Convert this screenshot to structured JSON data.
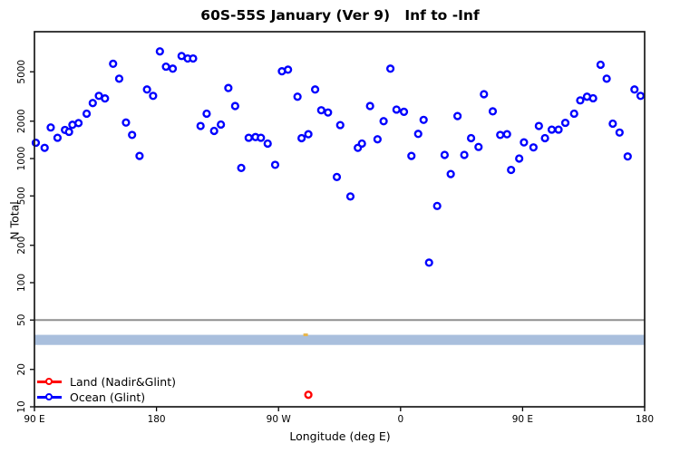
{
  "title": "60S-55S January (Ver 9)   Inf to -Inf",
  "chart_data": {
    "type": "scatter",
    "title": "60S-55S January (Ver 9)   Inf to -Inf",
    "xlabel": "Longitude (deg E)",
    "ylabel": "N Total",
    "x_axis": {
      "description": "longitude wrapping eastward, evenly spaced ticks",
      "range": [
        90,
        540
      ],
      "ticks": [
        {
          "value": 90,
          "label": "90 E"
        },
        {
          "value": 180,
          "label": "180"
        },
        {
          "value": 270,
          "label": "90 W"
        },
        {
          "value": 360,
          "label": "0"
        },
        {
          "value": 450,
          "label": "90 E"
        },
        {
          "value": 540,
          "label": "180"
        }
      ]
    },
    "y_axis": {
      "scale": "log",
      "min": 10,
      "max": 10000,
      "ticks": [
        10,
        20,
        50,
        100,
        200,
        500,
        1000,
        2000,
        5000
      ]
    },
    "grid": false,
    "reference_line": {
      "value": 50,
      "color": "#8f8f8f"
    },
    "reference_band": {
      "from": 31.5,
      "to": 38,
      "color": "#a9bfdd"
    },
    "small_mark": {
      "lon": 290,
      "value": 38,
      "color": "#e8b54a"
    },
    "legend": {
      "position": "bottom-left",
      "entries": [
        {
          "label": "Land (Nadir&Glint)",
          "color": "#ff0000"
        },
        {
          "label": "Ocean (Glint)",
          "color": "#0000ff"
        }
      ]
    },
    "series": [
      {
        "name": "Land (Nadir&Glint)",
        "color": "#ff0000",
        "marker": "open-circle",
        "points": [
          [
            292,
            12.5
          ]
        ]
      },
      {
        "name": "Ocean (Glint)",
        "color": "#0000ff",
        "marker": "open-circle",
        "points": [
          [
            91,
            1340
          ],
          [
            97.5,
            1220
          ],
          [
            102,
            1780
          ],
          [
            107,
            1470
          ],
          [
            112.5,
            1700
          ],
          [
            115.5,
            1640
          ],
          [
            118,
            1870
          ],
          [
            122.5,
            1930
          ],
          [
            128.5,
            2300
          ],
          [
            133,
            2800
          ],
          [
            137.5,
            3200
          ],
          [
            142,
            3050
          ],
          [
            148,
            5800
          ],
          [
            152.5,
            4400
          ],
          [
            157.5,
            1950
          ],
          [
            162,
            1550
          ],
          [
            167.5,
            1050
          ],
          [
            173,
            3600
          ],
          [
            177.5,
            3200
          ],
          [
            182.5,
            7300
          ],
          [
            187,
            5500
          ],
          [
            192,
            5300
          ],
          [
            198.5,
            6700
          ],
          [
            203,
            6400
          ],
          [
            207,
            6400
          ],
          [
            212.5,
            1830
          ],
          [
            217,
            2300
          ],
          [
            222.5,
            1670
          ],
          [
            227.5,
            1880
          ],
          [
            233,
            3700
          ],
          [
            238,
            2650
          ],
          [
            242.5,
            840
          ],
          [
            248,
            1470
          ],
          [
            253,
            1490
          ],
          [
            257,
            1470
          ],
          [
            262,
            1320
          ],
          [
            267.5,
            890
          ],
          [
            272.5,
            5050
          ],
          [
            277,
            5200
          ],
          [
            284,
            3150
          ],
          [
            287,
            1460
          ],
          [
            292,
            1570
          ],
          [
            297,
            3600
          ],
          [
            301.5,
            2450
          ],
          [
            306.5,
            2350
          ],
          [
            313,
            710
          ],
          [
            315.5,
            1860
          ],
          [
            323,
            495
          ],
          [
            328.5,
            1220
          ],
          [
            331.5,
            1320
          ],
          [
            337.5,
            2650
          ],
          [
            343,
            1430
          ],
          [
            347.5,
            2000
          ],
          [
            352.5,
            5300
          ],
          [
            357,
            2480
          ],
          [
            362.5,
            2380
          ],
          [
            368,
            1050
          ],
          [
            373,
            1580
          ],
          [
            377,
            2050
          ],
          [
            381,
            145
          ],
          [
            387,
            415
          ],
          [
            392.5,
            1070
          ],
          [
            397,
            750
          ],
          [
            402,
            2200
          ],
          [
            407,
            1070
          ],
          [
            412,
            1460
          ],
          [
            417.5,
            1240
          ],
          [
            421.5,
            3300
          ],
          [
            428,
            2400
          ],
          [
            433.5,
            1550
          ],
          [
            438.5,
            1570
          ],
          [
            441.5,
            810
          ],
          [
            447.5,
            1000
          ],
          [
            451,
            1350
          ],
          [
            458,
            1230
          ],
          [
            462,
            1830
          ],
          [
            466.5,
            1460
          ],
          [
            471.5,
            1710
          ],
          [
            476.5,
            1710
          ],
          [
            481.5,
            1940
          ],
          [
            488,
            2300
          ],
          [
            492.5,
            2940
          ],
          [
            497.5,
            3150
          ],
          [
            502,
            3060
          ],
          [
            507.5,
            5700
          ],
          [
            512,
            4400
          ],
          [
            516.5,
            1910
          ],
          [
            521.5,
            1620
          ],
          [
            527.5,
            1040
          ],
          [
            532.5,
            3600
          ],
          [
            537,
            3200
          ]
        ]
      }
    ]
  }
}
